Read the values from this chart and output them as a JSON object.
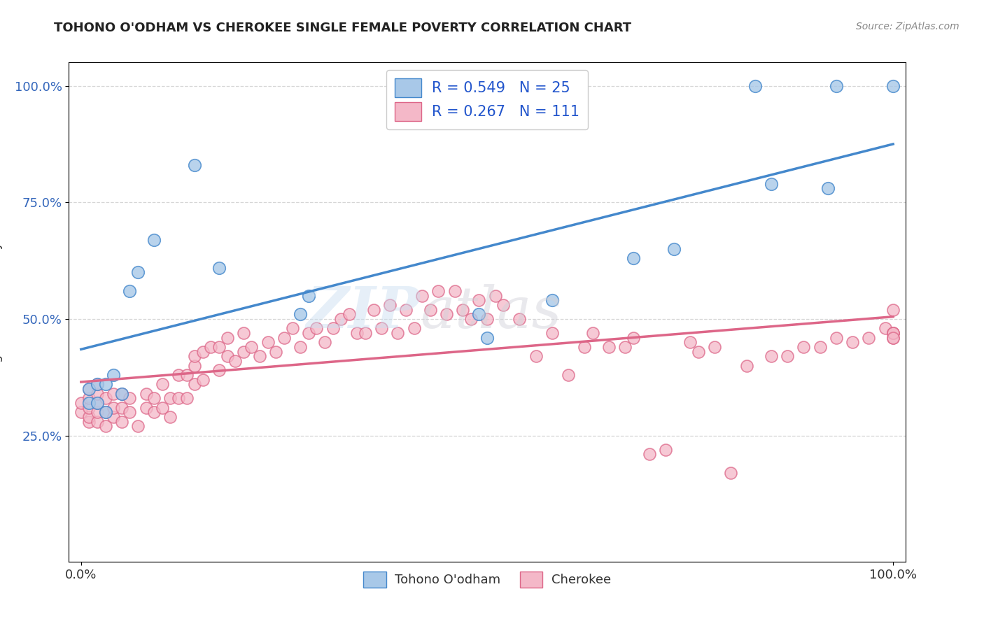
{
  "title": "TOHONO O'ODHAM VS CHEROKEE SINGLE FEMALE POVERTY CORRELATION CHART",
  "source": "Source: ZipAtlas.com",
  "ylabel": "Single Female Poverty",
  "legend_label1": "Tohono O'odham",
  "legend_label2": "Cherokee",
  "R1": 0.549,
  "N1": 25,
  "R2": 0.267,
  "N2": 111,
  "color_blue": "#a8c8e8",
  "color_pink": "#f4b8c8",
  "line_blue": "#4488cc",
  "line_pink": "#dd6688",
  "tohono_x": [
    0.01,
    0.01,
    0.02,
    0.02,
    0.03,
    0.03,
    0.04,
    0.05,
    0.06,
    0.07,
    0.09,
    0.14,
    0.17,
    0.27,
    0.28,
    0.49,
    0.5,
    0.58,
    0.68,
    0.73,
    0.83,
    0.85,
    0.92,
    0.93,
    1.0
  ],
  "tohono_y": [
    0.32,
    0.35,
    0.32,
    0.36,
    0.3,
    0.36,
    0.38,
    0.34,
    0.56,
    0.6,
    0.67,
    0.83,
    0.61,
    0.51,
    0.55,
    0.51,
    0.46,
    0.54,
    0.63,
    0.65,
    1.0,
    0.79,
    0.78,
    1.0,
    1.0
  ],
  "cherokee_x": [
    0.0,
    0.0,
    0.01,
    0.01,
    0.01,
    0.01,
    0.01,
    0.02,
    0.02,
    0.02,
    0.02,
    0.02,
    0.03,
    0.03,
    0.03,
    0.04,
    0.04,
    0.04,
    0.05,
    0.05,
    0.05,
    0.06,
    0.06,
    0.07,
    0.08,
    0.08,
    0.09,
    0.09,
    0.1,
    0.1,
    0.11,
    0.11,
    0.12,
    0.12,
    0.13,
    0.13,
    0.14,
    0.14,
    0.14,
    0.15,
    0.15,
    0.16,
    0.17,
    0.17,
    0.18,
    0.18,
    0.19,
    0.2,
    0.2,
    0.21,
    0.22,
    0.23,
    0.24,
    0.25,
    0.26,
    0.27,
    0.28,
    0.29,
    0.3,
    0.31,
    0.32,
    0.33,
    0.34,
    0.35,
    0.36,
    0.37,
    0.38,
    0.39,
    0.4,
    0.41,
    0.42,
    0.43,
    0.44,
    0.45,
    0.46,
    0.47,
    0.48,
    0.49,
    0.5,
    0.51,
    0.52,
    0.54,
    0.56,
    0.58,
    0.6,
    0.62,
    0.63,
    0.65,
    0.67,
    0.68,
    0.7,
    0.72,
    0.75,
    0.76,
    0.78,
    0.8,
    0.82,
    0.85,
    0.87,
    0.89,
    0.91,
    0.93,
    0.95,
    0.97,
    0.99,
    1.0,
    1.0,
    1.0,
    1.0,
    1.0,
    1.0
  ],
  "cherokee_y": [
    0.3,
    0.32,
    0.28,
    0.29,
    0.31,
    0.33,
    0.35,
    0.28,
    0.3,
    0.32,
    0.34,
    0.36,
    0.27,
    0.3,
    0.33,
    0.29,
    0.31,
    0.34,
    0.28,
    0.31,
    0.34,
    0.3,
    0.33,
    0.27,
    0.31,
    0.34,
    0.3,
    0.33,
    0.31,
    0.36,
    0.29,
    0.33,
    0.33,
    0.38,
    0.33,
    0.38,
    0.36,
    0.4,
    0.42,
    0.37,
    0.43,
    0.44,
    0.39,
    0.44,
    0.42,
    0.46,
    0.41,
    0.43,
    0.47,
    0.44,
    0.42,
    0.45,
    0.43,
    0.46,
    0.48,
    0.44,
    0.47,
    0.48,
    0.45,
    0.48,
    0.5,
    0.51,
    0.47,
    0.47,
    0.52,
    0.48,
    0.53,
    0.47,
    0.52,
    0.48,
    0.55,
    0.52,
    0.56,
    0.51,
    0.56,
    0.52,
    0.5,
    0.54,
    0.5,
    0.55,
    0.53,
    0.5,
    0.42,
    0.47,
    0.38,
    0.44,
    0.47,
    0.44,
    0.44,
    0.46,
    0.21,
    0.22,
    0.45,
    0.43,
    0.44,
    0.17,
    0.4,
    0.42,
    0.42,
    0.44,
    0.44,
    0.46,
    0.45,
    0.46,
    0.48,
    0.47,
    0.46,
    0.52,
    0.47,
    0.47,
    0.46
  ],
  "blue_line_x0": 0.0,
  "blue_line_y0": 0.435,
  "blue_line_x1": 1.0,
  "blue_line_y1": 0.875,
  "pink_line_x0": 0.0,
  "pink_line_y0": 0.365,
  "pink_line_x1": 1.0,
  "pink_line_y1": 0.505,
  "xlim": [
    0.0,
    1.0
  ],
  "ylim": [
    0.0,
    1.05
  ],
  "ytick_vals": [
    0.25,
    0.5,
    0.75,
    1.0
  ],
  "ytick_labels": [
    "25.0%",
    "50.0%",
    "75.0%",
    "100.0%"
  ],
  "xtick_vals": [
    0.0,
    1.0
  ],
  "xtick_labels": [
    "0.0%",
    "100.0%"
  ]
}
